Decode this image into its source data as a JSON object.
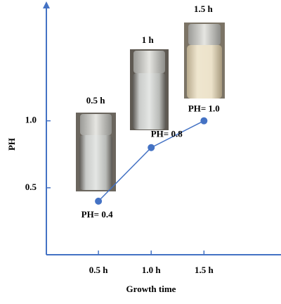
{
  "chart_data": {
    "type": "line",
    "y_label": "PH",
    "x_label": "Growth time",
    "x": [
      0.5,
      1.0,
      1.5
    ],
    "values": [
      0.4,
      0.8,
      1.0
    ],
    "value_labels": [
      "PH= 0.4",
      "PH= 0.8",
      "PH= 1.0"
    ],
    "annotations": [
      "0.5 h",
      "1 h",
      "1.5 h"
    ],
    "color": "#4472c4",
    "xlim": [
      0,
      2.23
    ],
    "ylim": [
      0,
      1.86
    ],
    "xticks": [
      {
        "value": 0.5,
        "label": "0.5 h"
      },
      {
        "value": 1.0,
        "label": "1.0 h"
      },
      {
        "value": 1.5,
        "label": "1.5 h"
      }
    ],
    "yticks": [
      0.5,
      {
        "value": 1,
        "label": "1.0"
      }
    ],
    "grid": false
  }
}
